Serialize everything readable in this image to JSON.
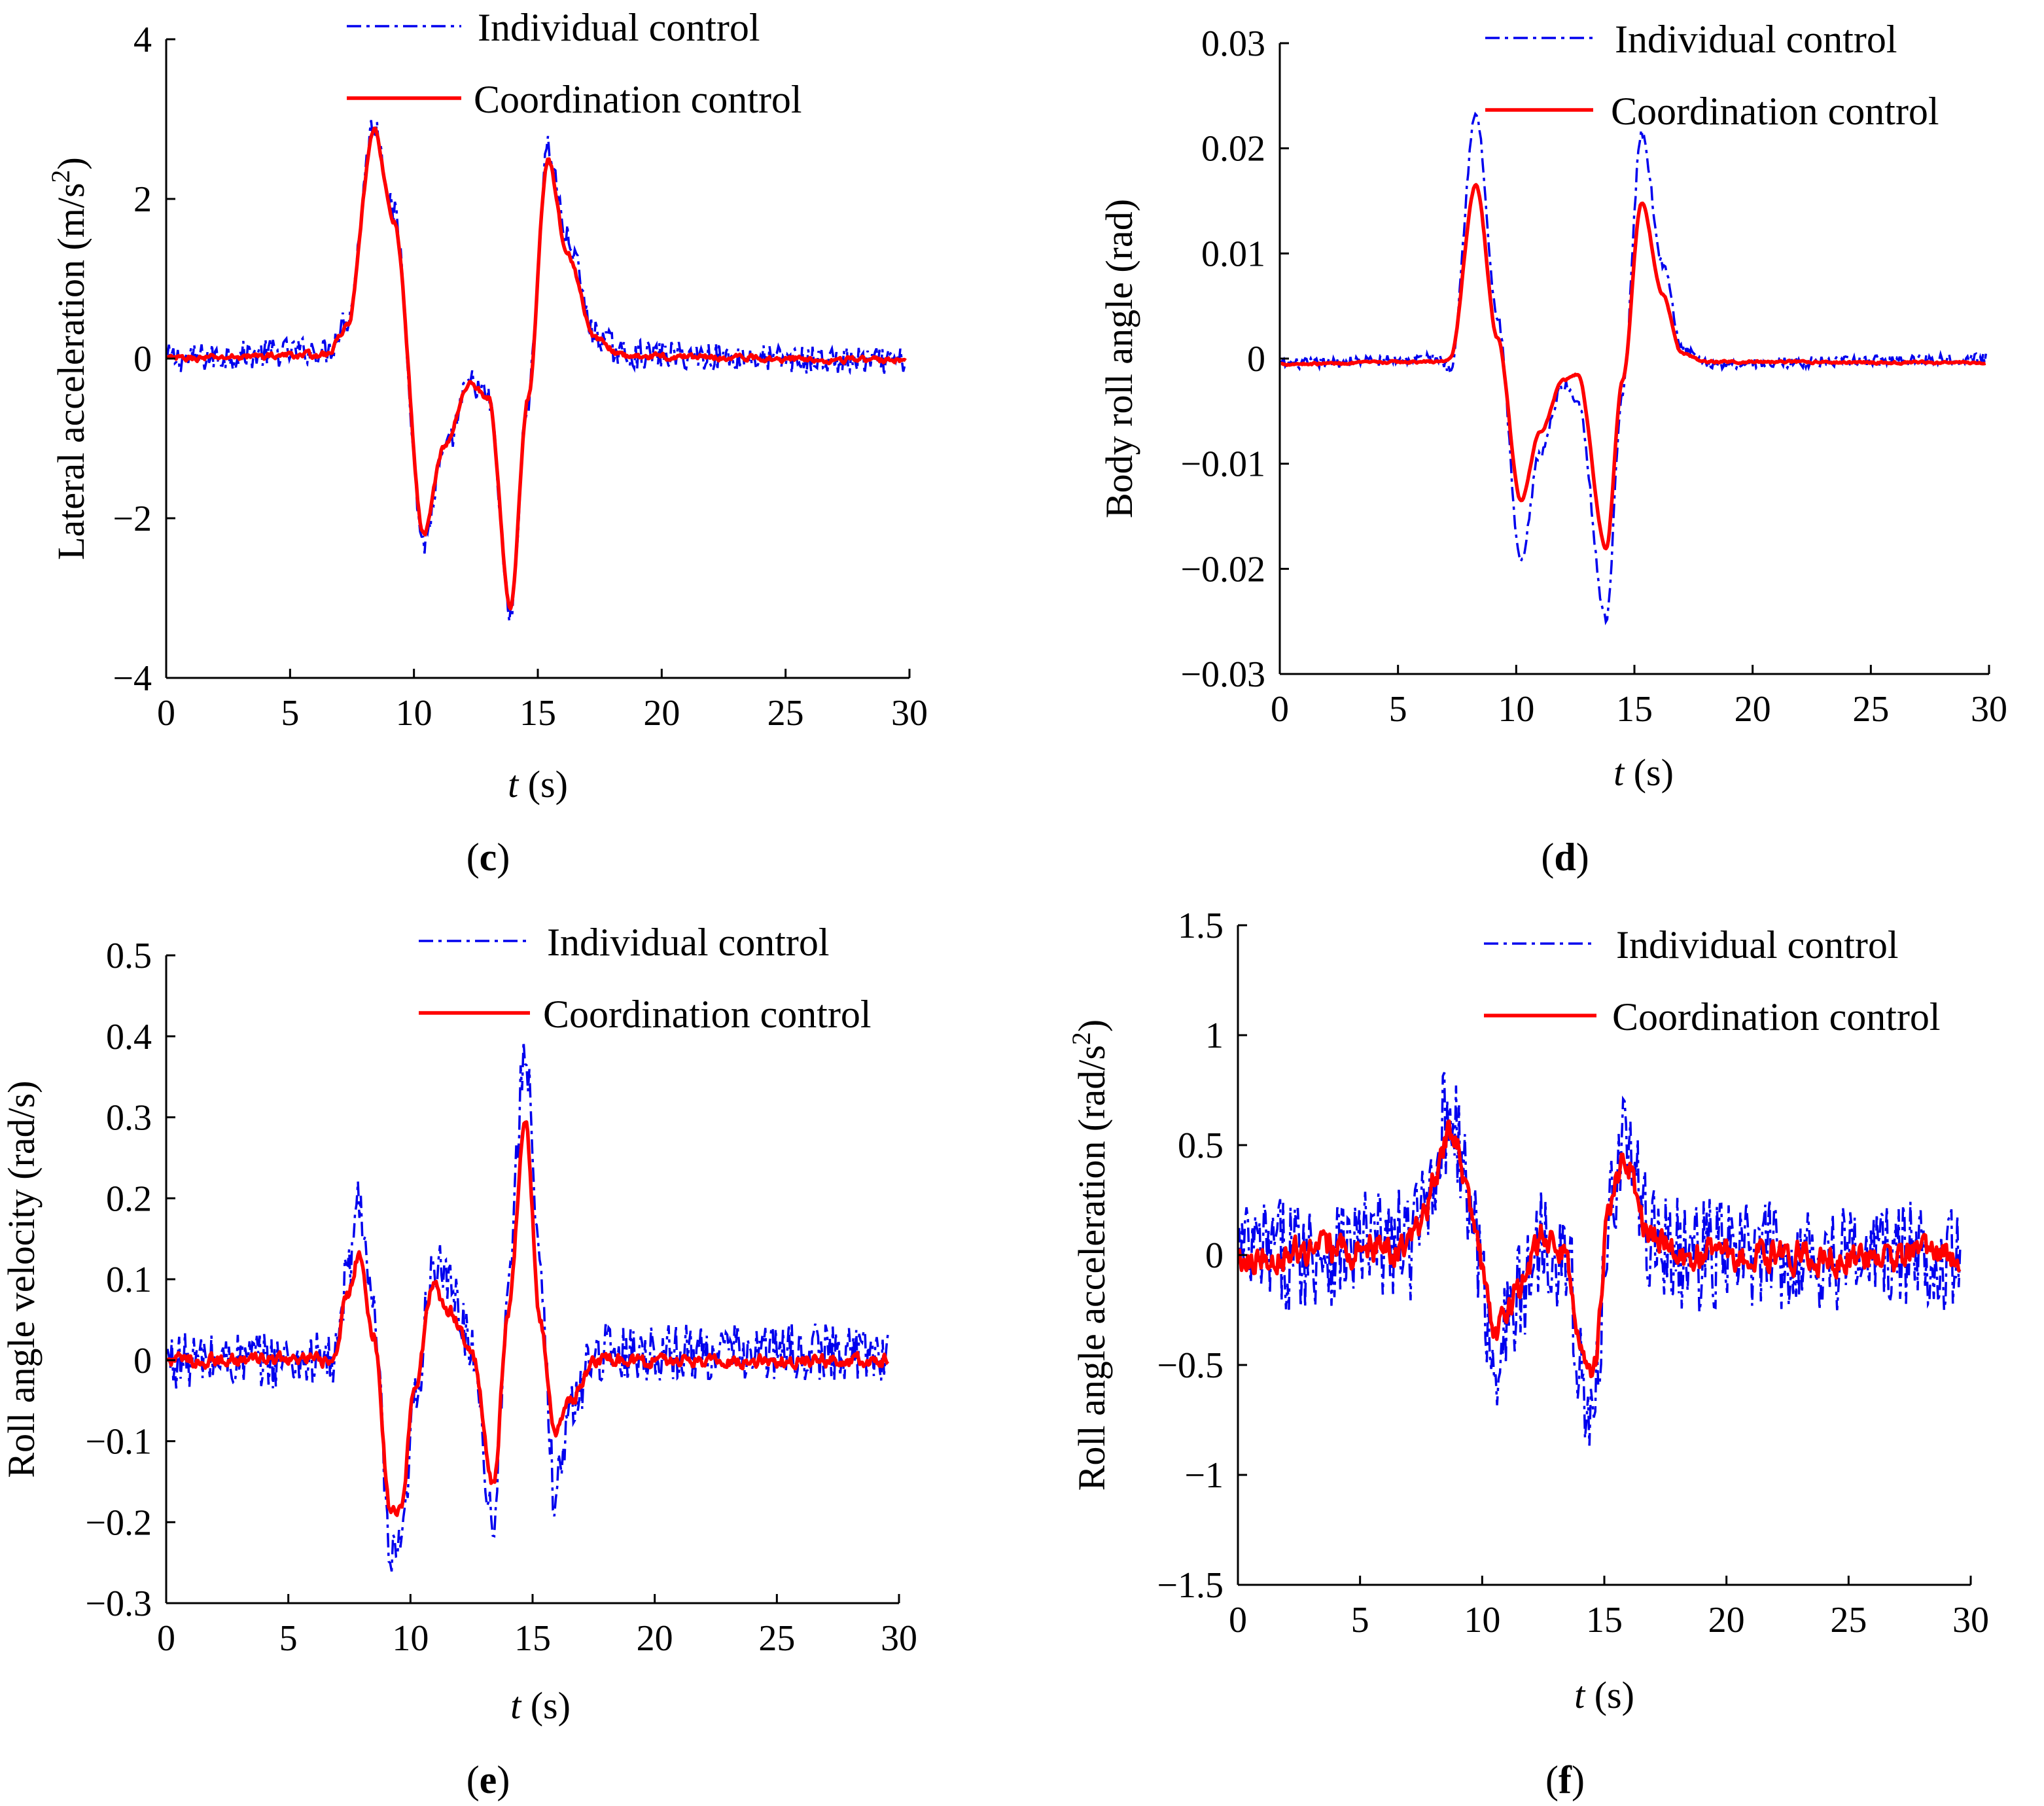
{
  "colors": {
    "individual": "#0000ee",
    "coordination": "#ff0000",
    "axis": "#000000"
  },
  "chart_data": [
    {
      "id": "c",
      "type": "line",
      "panel_label": "c",
      "xlabel_var": "t",
      "xlabel_unit": " (s)",
      "ylabel": "Lateral acceleration (m/s",
      "ylabel_sup": "2",
      "ylabel_end": ")",
      "xlim": [
        0,
        30
      ],
      "ylim": [
        -4,
        4
      ],
      "xticks": [
        0,
        5,
        10,
        15,
        20,
        25,
        30
      ],
      "xtick_labels": [
        "0",
        "5",
        "10",
        "15",
        "20",
        "25",
        "30"
      ],
      "yticks": [
        -4,
        -2,
        0,
        2,
        4
      ],
      "ytick_labels": [
        "−4",
        "−2",
        "0",
        "2",
        "4"
      ],
      "legend": [
        "Individual control",
        "Coordination control"
      ],
      "noise": {
        "individual": 0.18,
        "coordination": 0.07
      },
      "series": [
        {
          "name": "Individual control",
          "x": [
            0,
            6.5,
            7.3,
            8.4,
            9.2,
            10.4,
            11.2,
            12.3,
            13.0,
            13.9,
            14.6,
            15.4,
            16.2,
            17.3,
            18.5,
            30
          ],
          "values": [
            0,
            0.1,
            0.5,
            2.95,
            1.8,
            -2.3,
            -1.2,
            -0.3,
            -0.5,
            -3.2,
            -0.5,
            2.65,
            1.5,
            0.3,
            0.05,
            -0.05
          ]
        },
        {
          "name": "Coordination control",
          "x": [
            0,
            6.5,
            7.3,
            8.4,
            9.2,
            10.4,
            11.2,
            12.3,
            13.0,
            13.9,
            14.6,
            15.4,
            16.2,
            17.3,
            18.5,
            30
          ],
          "values": [
            0,
            0.05,
            0.4,
            2.85,
            1.7,
            -2.2,
            -1.1,
            -0.3,
            -0.5,
            -3.1,
            -0.5,
            2.5,
            1.3,
            0.25,
            0.03,
            -0.02
          ]
        }
      ]
    },
    {
      "id": "d",
      "type": "line",
      "panel_label": "d",
      "xlabel_var": "t",
      "xlabel_unit": " (s)",
      "ylabel": "Body roll angle (rad)",
      "ylabel_sup": "",
      "ylabel_end": "",
      "xlim": [
        0,
        30
      ],
      "ylim": [
        -0.03,
        0.03
      ],
      "xticks": [
        0,
        5,
        10,
        15,
        20,
        25,
        30
      ],
      "xtick_labels": [
        "0",
        "5",
        "10",
        "15",
        "20",
        "25",
        "30"
      ],
      "yticks": [
        -0.03,
        -0.02,
        -0.01,
        0,
        0.01,
        0.02,
        0.03
      ],
      "ytick_labels": [
        "−0.03",
        "−0.02",
        "−0.01",
        "0",
        "0.01",
        "0.02",
        "0.03"
      ],
      "legend": [
        "Individual control",
        "Coordination control"
      ],
      "noise": {
        "individual": 0.0005,
        "coordination": 0.0002
      },
      "series": [
        {
          "name": "Individual control",
          "x": [
            0,
            6.8,
            7.2,
            8.3,
            9.2,
            10.2,
            11.0,
            12.0,
            12.6,
            13.8,
            14.5,
            15.3,
            16.2,
            17.0,
            18.0,
            30
          ],
          "values": [
            -0.0005,
            0,
            -0.001,
            0.0232,
            0.004,
            -0.0195,
            -0.009,
            -0.0025,
            -0.004,
            -0.0248,
            -0.003,
            0.0215,
            0.009,
            0.001,
            -0.0005,
            0
          ]
        },
        {
          "name": "Coordination control",
          "x": [
            0,
            6.8,
            7.2,
            8.3,
            9.2,
            10.2,
            11.0,
            12.0,
            12.6,
            13.8,
            14.5,
            15.3,
            16.2,
            17.0,
            18.0,
            30
          ],
          "values": [
            -0.0005,
            -0.0003,
            0,
            0.0165,
            0.002,
            -0.0135,
            -0.007,
            -0.002,
            -0.0015,
            -0.018,
            -0.002,
            0.0148,
            0.006,
            0.0005,
            -0.0003,
            -0.0004
          ]
        }
      ]
    },
    {
      "id": "e",
      "type": "line",
      "panel_label": "e",
      "xlabel_var": "t",
      "xlabel_unit": " (s)",
      "ylabel": "Roll angle velocity (rad/s)",
      "ylabel_sup": "",
      "ylabel_end": "",
      "xlim": [
        0,
        30
      ],
      "ylim": [
        -0.3,
        0.5
      ],
      "xticks": [
        0,
        5,
        10,
        15,
        20,
        25,
        30
      ],
      "xtick_labels": [
        "0",
        "5",
        "10",
        "15",
        "20",
        "25",
        "30"
      ],
      "yticks": [
        -0.3,
        -0.2,
        -0.1,
        0,
        0.1,
        0.2,
        0.3,
        0.4,
        0.5
      ],
      "ytick_labels": [
        "−0.3",
        "−0.2",
        "−0.1",
        "0",
        "0.1",
        "0.2",
        "0.3",
        "0.4",
        "0.5"
      ],
      "legend": [
        "Individual control",
        "Coordination control"
      ],
      "noise": {
        "individual": 0.035,
        "coordination": 0.015
      },
      "series": [
        {
          "name": "Individual control",
          "x": [
            0,
            6.9,
            7.4,
            7.9,
            8.5,
            9.2,
            9.6,
            10.2,
            10.9,
            11.6,
            12.5,
            13.4,
            14.0,
            14.7,
            15.3,
            15.9,
            16.6,
            17.5,
            30
          ],
          "values": [
            0,
            0,
            0.1,
            0.2,
            0.05,
            -0.25,
            -0.24,
            -0.05,
            0.12,
            0.09,
            0.02,
            -0.2,
            0.1,
            0.39,
            0.1,
            -0.16,
            -0.06,
            0.01,
            0.01
          ]
        },
        {
          "name": "Coordination control",
          "x": [
            0,
            6.9,
            7.4,
            7.9,
            8.5,
            9.2,
            9.6,
            10.2,
            10.9,
            11.6,
            12.5,
            13.4,
            14.0,
            14.7,
            15.3,
            15.9,
            16.6,
            17.5,
            30
          ],
          "values": [
            0,
            0,
            0.08,
            0.13,
            0.03,
            -0.19,
            -0.18,
            -0.03,
            0.09,
            0.06,
            0.01,
            -0.15,
            0.06,
            0.3,
            0.05,
            -0.09,
            -0.05,
            0,
            0
          ]
        }
      ]
    },
    {
      "id": "f",
      "type": "line",
      "panel_label": "f",
      "xlabel_var": "t",
      "xlabel_unit": " (s)",
      "ylabel": "Roll angle acceleration (rad/s",
      "ylabel_sup": "2",
      "ylabel_end": ")",
      "xlim": [
        0,
        30
      ],
      "ylim": [
        -1.5,
        1.5
      ],
      "xticks": [
        0,
        5,
        10,
        15,
        20,
        25,
        30
      ],
      "xtick_labels": [
        "0",
        "5",
        "10",
        "15",
        "20",
        "25",
        "30"
      ],
      "yticks": [
        -1.5,
        -1,
        -0.5,
        0,
        0.5,
        1,
        1.5
      ],
      "ytick_labels": [
        "−1.5",
        "−1",
        "−0.5",
        "0",
        "0.5",
        "1",
        "1.5"
      ],
      "legend": [
        "Individual control",
        "Coordination control"
      ],
      "noise": {
        "individual": 0.26,
        "coordination": 0.13
      },
      "series": [
        {
          "name": "Individual control",
          "x": [
            0,
            7,
            8.8,
            9.5,
            10.5,
            11.5,
            12.5,
            13.3,
            14.5,
            15.2,
            15.8,
            16.8,
            18,
            30
          ],
          "values": [
            0,
            0.05,
            0.65,
            0.2,
            -0.45,
            -0.2,
            0.1,
            0,
            -0.8,
            0.2,
            0.55,
            0.1,
            0,
            0
          ]
        },
        {
          "name": "Coordination control",
          "x": [
            0,
            7,
            8.8,
            9.5,
            10.5,
            11.5,
            12.5,
            13.3,
            14.5,
            15.2,
            15.8,
            16.8,
            18,
            30
          ],
          "values": [
            0,
            0.03,
            0.55,
            0.2,
            -0.35,
            -0.15,
            0.08,
            0,
            -0.6,
            0.2,
            0.45,
            0.08,
            0,
            0
          ]
        }
      ]
    }
  ]
}
